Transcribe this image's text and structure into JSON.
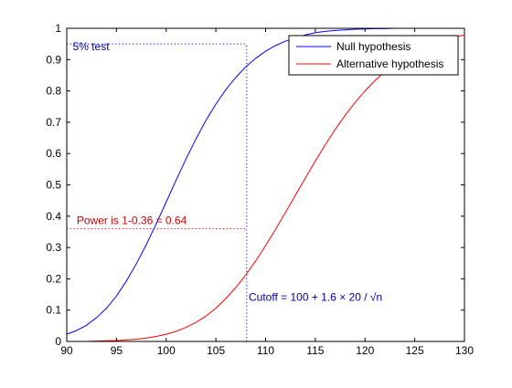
{
  "chart_data": {
    "type": "line",
    "title": "",
    "xlabel": "",
    "ylabel": "",
    "xlim": [
      90,
      130
    ],
    "ylim": [
      0,
      1
    ],
    "x_ticks": [
      90,
      95,
      100,
      105,
      110,
      115,
      120,
      125,
      130
    ],
    "y_ticks": [
      0,
      0.1,
      0.2,
      0.3,
      0.4,
      0.5,
      0.6,
      0.7,
      0.8,
      0.9,
      1
    ],
    "grid": false,
    "legend_position": "top-right",
    "series": [
      {
        "name": "Null hypothesis",
        "color": "#0000ff",
        "x": [
          90,
          91,
          92,
          93,
          94,
          95,
          96,
          97,
          98,
          99,
          100,
          101,
          102,
          103,
          104,
          105,
          106,
          107,
          108,
          109,
          110,
          111,
          112,
          113,
          114,
          115,
          116,
          117,
          118,
          119,
          120,
          121,
          122,
          123,
          124,
          125,
          126,
          127,
          128,
          129,
          130
        ],
        "y": [
          0.023,
          0.035,
          0.052,
          0.076,
          0.106,
          0.145,
          0.193,
          0.248,
          0.309,
          0.376,
          0.445,
          0.515,
          0.583,
          0.647,
          0.706,
          0.758,
          0.804,
          0.843,
          0.877,
          0.904,
          0.927,
          0.945,
          0.959,
          0.97,
          0.979,
          0.986,
          0.99,
          0.993,
          0.995,
          0.997,
          0.998,
          0.999,
          0.999,
          1.0,
          1.0,
          1.0,
          1.0,
          1.0,
          1.0,
          1.0,
          1.0
        ]
      },
      {
        "name": "Alternative hypothesis",
        "color": "#ff0000",
        "x": [
          90,
          91,
          92,
          93,
          94,
          95,
          96,
          97,
          98,
          99,
          100,
          101,
          102,
          103,
          104,
          105,
          106,
          107,
          108,
          109,
          110,
          111,
          112,
          113,
          114,
          115,
          116,
          117,
          118,
          119,
          120,
          121,
          122,
          123,
          124,
          125,
          126,
          127,
          128,
          129,
          130
        ],
        "y": [
          0.0,
          0.0,
          0.0,
          0.001,
          0.002,
          0.003,
          0.005,
          0.007,
          0.011,
          0.016,
          0.023,
          0.032,
          0.045,
          0.061,
          0.081,
          0.106,
          0.137,
          0.172,
          0.212,
          0.257,
          0.306,
          0.358,
          0.412,
          0.467,
          0.522,
          0.576,
          0.628,
          0.677,
          0.722,
          0.763,
          0.8,
          0.833,
          0.862,
          0.887,
          0.908,
          0.926,
          0.941,
          0.954,
          0.964,
          0.972,
          0.979
        ]
      }
    ],
    "reference_lines": [
      {
        "orientation": "horizontal",
        "value": 0.95,
        "color": "#0000ff",
        "style": "dotted",
        "from": 90,
        "to": 108.1
      },
      {
        "orientation": "horizontal",
        "value": 0.36,
        "color": "#ff0000",
        "style": "dotted",
        "from": 90,
        "to": 108.1
      },
      {
        "orientation": "vertical",
        "value": 108.1,
        "color": "#0000ff",
        "style": "dotted",
        "from": 0,
        "to": 0.95
      }
    ],
    "annotations": [
      {
        "text": "5% test",
        "x": 90.6,
        "y": 0.93,
        "color": "#0000a0"
      },
      {
        "text": "Power is 1-0.36 = 0.64",
        "x": 91.0,
        "y": 0.375,
        "color": "#cc0000"
      },
      {
        "text": "Cutoff = 100 + 1.6 × 20 / √n",
        "x": 108.3,
        "y": 0.13,
        "color": "#0000a0"
      }
    ]
  }
}
